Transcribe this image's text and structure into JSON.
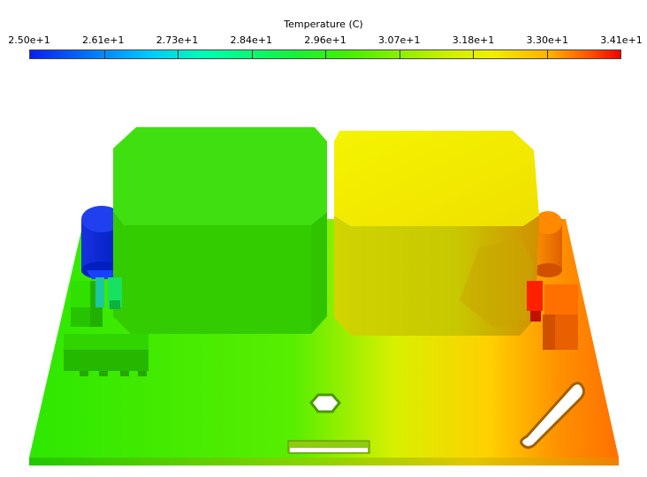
{
  "legend": {
    "title": "Temperature (C)",
    "ticks": [
      "2.50e+1",
      "2.61e+1",
      "2.73e+1",
      "2.84e+1",
      "2.96e+1",
      "3.07e+1",
      "3.18e+1",
      "3.30e+1",
      "3.41e+1"
    ],
    "min": 25.0,
    "max": 34.1,
    "colormap": [
      "#0a1ef0",
      "#00c8ff",
      "#00ffb0",
      "#18f038",
      "#4cf000",
      "#c8f000",
      "#f0f000",
      "#ffb000",
      "#ff5000",
      "#f00000"
    ]
  },
  "model": {
    "board_color": "#3cf000",
    "left_block_color": "#33dd00",
    "right_block_color": "#e8f000",
    "hot_corner_color": "#ff7a00",
    "cold_component_color": "#0a2ef0"
  }
}
